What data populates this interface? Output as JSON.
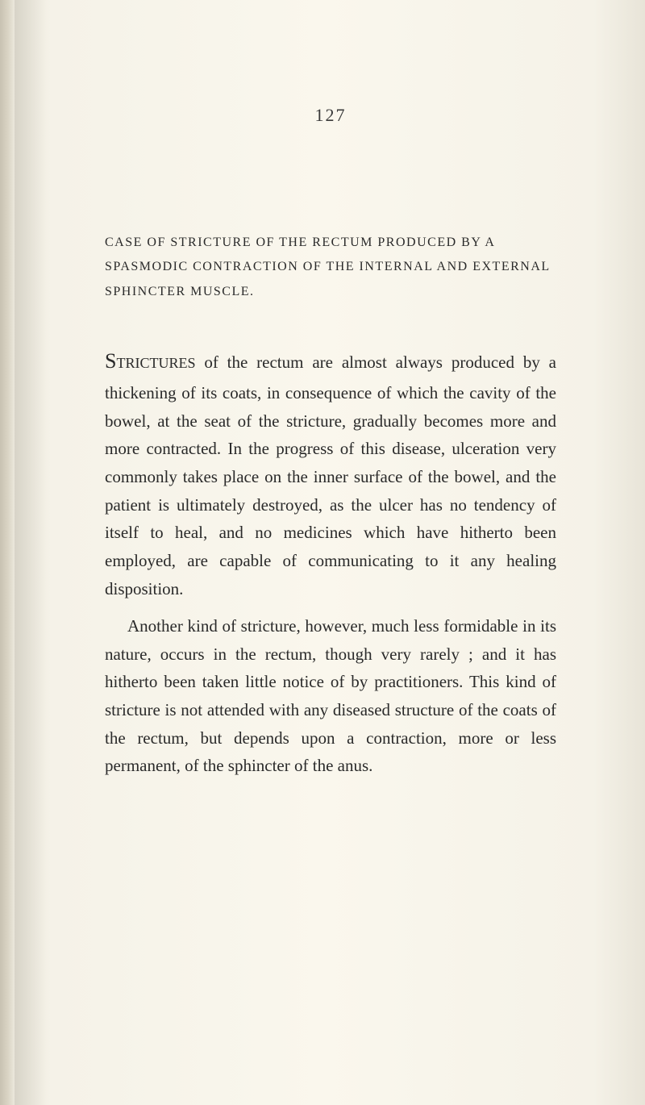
{
  "page_number": "127",
  "heading": "CASE OF STRICTURE OF THE RECTUM PRODUCED BY A SPASMODIC CONTRACTION OF THE INTERNAL AND EXTERNAL SPHINCTER MUSCLE.",
  "paragraphs": [
    {
      "dropcap": "Strictures",
      "text": " of the rectum are almost always produced by a thickening of its coats, in consequence of which the cavity of the bowel, at the seat of the stricture, gradually becomes more and more contracted. In the progress of this disease, ulceration very commonly takes place on the inner surface of the bowel, and the patient is ultimately destroyed, as the ulcer has no tendency of itself to heal, and no medicines which have hitherto been employed, are capable of communicating to it any healing disposition."
    },
    {
      "text": "Another kind of stricture, however, much less formidable in its nature, occurs in the rectum, though very rarely ; and it has hitherto been taken little notice of by practitioners. This kind of stricture is not attended with any diseased structure of the coats of the rectum, but depends upon a contraction, more or less permanent, of the sphincter of the anus."
    }
  ],
  "colors": {
    "background": "#faf7ed",
    "text": "#2a2a2a",
    "edge": "#c8c2b2"
  },
  "typography": {
    "body_font": "Georgia, Times New Roman, serif",
    "page_number_size": 22,
    "heading_size": 16,
    "body_size": 21,
    "line_height": 1.65
  }
}
